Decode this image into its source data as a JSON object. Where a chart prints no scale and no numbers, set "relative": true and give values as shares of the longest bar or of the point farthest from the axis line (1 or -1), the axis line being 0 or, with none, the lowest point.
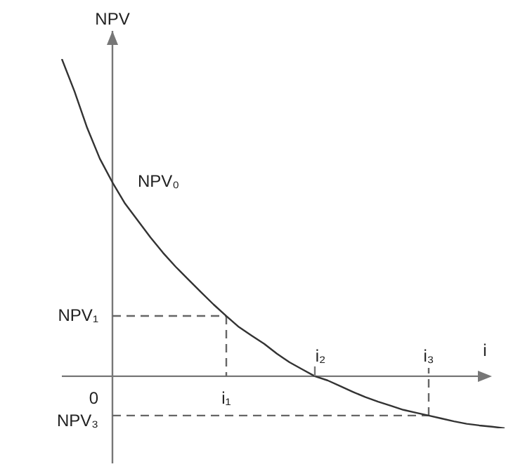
{
  "chart_data": {
    "type": "line",
    "relative": true,
    "xlabel": "i",
    "ylabel": "NPV",
    "marker": "none",
    "legend": false,
    "grid": false,
    "categories": [
      null,
      null,
      null,
      null,
      null,
      null,
      null,
      null,
      null,
      null,
      null,
      null,
      null,
      null,
      null,
      null,
      null,
      null,
      null,
      null,
      null,
      null,
      null,
      null,
      null,
      null,
      null,
      null,
      null,
      null,
      null,
      null,
      null,
      null,
      null,
      null
    ],
    "series": [
      {
        "color": "#333333",
        "values": [
          1,
          0.898,
          0.783,
          0.686,
          0.611,
          0.544,
          0.491,
          0.438,
          0.389,
          0.345,
          0.305,
          0.265,
          0.226,
          0.19,
          0.155,
          0.128,
          0.102,
          0.071,
          0.044,
          0.022,
          0,
          -0.013,
          -0.031,
          -0.049,
          -0.066,
          -0.08,
          -0.093,
          -0.106,
          -0.115,
          -0.124,
          -0.133,
          -0.142,
          -0.15,
          -0.155,
          -0.159,
          -0.164
        ]
      },
      {
        "color": "#666666",
        "line_style": "dashed",
        "values": [
          null,
          null,
          null,
          null,
          0.19,
          0.19,
          0.19,
          0.19,
          0.19,
          0.19,
          0.19,
          0.19,
          0.19,
          0.19,
          null,
          null,
          null,
          null,
          null,
          null,
          null,
          null,
          null,
          null,
          null,
          null,
          null,
          null,
          null,
          null,
          null,
          null,
          null,
          null,
          null,
          null
        ]
      },
      {
        "color": "#666666",
        "line_style": "dashed",
        "values": [
          null,
          null,
          null,
          null,
          -0.124,
          -0.124,
          -0.124,
          -0.124,
          -0.124,
          -0.124,
          -0.124,
          -0.124,
          -0.124,
          -0.124,
          -0.124,
          -0.124,
          -0.124,
          -0.124,
          -0.124,
          -0.124,
          -0.124,
          -0.124,
          -0.124,
          -0.124,
          -0.124,
          -0.124,
          -0.124,
          -0.124,
          -0.124,
          -0.124,
          null,
          null,
          null,
          null,
          null,
          null
        ]
      }
    ],
    "annotations": [
      "NPV₀",
      "NPV₁",
      "NPV₃",
      "0",
      "i₁",
      "i₂",
      "i₃"
    ]
  }
}
